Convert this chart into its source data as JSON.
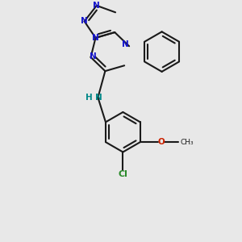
{
  "bg": "#e8e8e8",
  "bc": "#1a1a1a",
  "nc": "#1414cc",
  "oc": "#cc2200",
  "clc": "#2a8a2a",
  "nhc": "#008888",
  "lw": 1.5,
  "figsize": [
    3.0,
    3.0
  ],
  "dpi": 100,
  "xlim": [
    -2.5,
    2.5
  ],
  "ylim": [
    -2.8,
    2.2
  ]
}
